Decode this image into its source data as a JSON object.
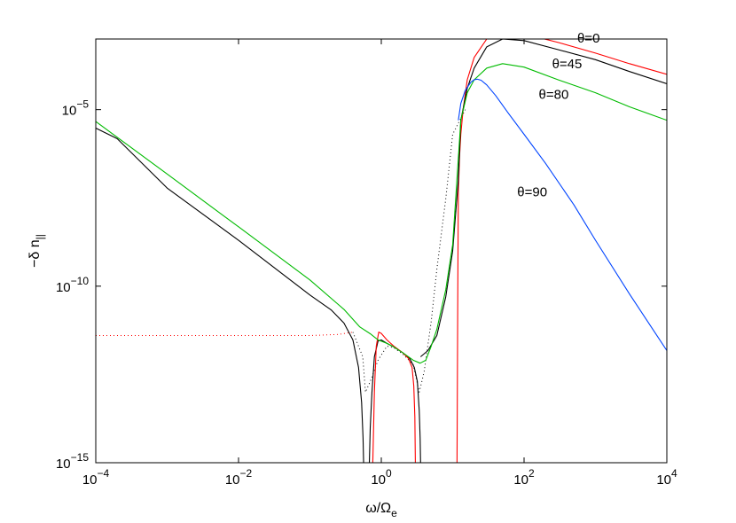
{
  "chart_data": {
    "type": "line",
    "xscale": "log",
    "yscale": "log",
    "xlim": [
      0.0001,
      10000
    ],
    "ylim": [
      1e-15,
      0.001
    ],
    "x_ticks": [
      {
        "value": 0.0001,
        "base": "10",
        "exp": "−4"
      },
      {
        "value": 0.01,
        "base": "10",
        "exp": "−2"
      },
      {
        "value": 1,
        "base": "10",
        "exp": "0"
      },
      {
        "value": 100,
        "base": "10",
        "exp": "2"
      },
      {
        "value": 10000,
        "base": "10",
        "exp": "4"
      }
    ],
    "y_ticks": [
      {
        "value": 1e-15,
        "base": "10",
        "exp": "−15"
      },
      {
        "value": 1e-10,
        "base": "10",
        "exp": "−10"
      },
      {
        "value": 1e-05,
        "base": "10",
        "exp": "−5"
      }
    ],
    "xlabel": {
      "main": "ω/Ω",
      "sub": "e"
    },
    "ylabel": {
      "main": "−δ n",
      "sub": "||"
    },
    "grid": false,
    "annotations": [
      {
        "text": "θ=0",
        "x": 800,
        "y": 0.0008,
        "color": "#000000"
      },
      {
        "text": "θ=45",
        "x": 400,
        "y": 0.00015,
        "color": "#000000"
      },
      {
        "text": "θ=80",
        "x": 260,
        "y": 2e-05,
        "color": "#000000"
      },
      {
        "text": "θ=90",
        "x": 130,
        "y": 3.5e-08,
        "color": "#000000"
      }
    ],
    "series": [
      {
        "color": "#ff0000",
        "style": "dotted",
        "x": [
          0.0001,
          0.01,
          0.1,
          0.25,
          0.4
        ],
        "y": [
          4e-12,
          4e-12,
          4e-12,
          4.3e-12,
          5e-12
        ]
      },
      {
        "color": "#000000",
        "style": "dotted",
        "x": [
          0.4,
          0.55,
          0.6,
          0.7,
          0.9,
          1.2,
          1.5,
          2,
          2.8,
          3.4,
          3.7,
          4,
          5,
          6,
          8,
          10,
          15
        ],
        "y": [
          5e-12,
          1e-12,
          1e-13,
          2e-13,
          8e-13,
          2e-12,
          1.8e-12,
          1.2e-12,
          6e-13,
          1e-13,
          2e-13,
          4e-13,
          1e-11,
          3e-10,
          3e-08,
          2e-06,
          1e-05
        ]
      },
      {
        "color": "#000000",
        "style": "solid",
        "x": [
          0.0001,
          0.0002,
          0.001,
          0.01,
          0.1,
          0.2,
          0.3,
          0.4,
          0.48,
          0.53,
          0.555,
          0.565
        ],
        "y": [
          3e-06,
          1.5e-06,
          6e-08,
          2e-09,
          5.6e-11,
          2.1e-11,
          9e-12,
          3e-12,
          5e-13,
          5e-14,
          5e-15,
          1e-15
        ]
      },
      {
        "color": "#000000",
        "style": "solid",
        "x": [
          0.68,
          0.7,
          0.74,
          0.8,
          0.9,
          1.0,
          1.2,
          1.5,
          2,
          2.5,
          2.9,
          3.2,
          3.4,
          3.5,
          3.55
        ],
        "y": [
          1e-15,
          1e-14,
          1e-13,
          1e-12,
          2.8e-12,
          3e-12,
          2.4e-12,
          1.9e-12,
          1.3e-12,
          9e-13,
          5e-13,
          2e-13,
          3e-14,
          5e-15,
          1e-15
        ]
      },
      {
        "color": "#ff0000",
        "style": "solid",
        "x": [
          0.76,
          0.78,
          0.8,
          0.85,
          0.92,
          1.0,
          1.2,
          1.5,
          2,
          2.4,
          2.7,
          2.85,
          2.95,
          3.0
        ],
        "y": [
          1e-15,
          1e-14,
          1e-13,
          2e-12,
          5e-12,
          4.6e-12,
          3e-12,
          2e-12,
          1.3e-12,
          9e-13,
          5e-13,
          1.5e-13,
          2e-14,
          1e-15
        ]
      },
      {
        "color": "#ff0000",
        "style": "solid",
        "x": [
          11.5,
          11.8,
          12,
          12.5,
          13,
          14,
          16,
          20,
          30,
          50,
          100,
          300,
          1000,
          3000,
          10000
        ],
        "y": [
          1e-15,
          1e-10,
          5e-08,
          5e-07,
          2e-06,
          1e-05,
          7e-05,
          0.0003,
          0.001,
          0.0017,
          0.0014,
          0.0008,
          0.0004,
          0.0002,
          0.0001
        ]
      },
      {
        "color": "#000000",
        "style": "solid",
        "x": [
          3.55,
          4.5,
          6,
          8,
          10,
          12,
          13,
          16,
          20,
          30,
          50,
          100,
          300,
          1000,
          3000,
          10000
        ],
        "y": [
          1e-12,
          1.5e-12,
          4e-12,
          5e-11,
          1e-09,
          1e-07,
          5e-06,
          4e-05,
          0.00015,
          0.0006,
          0.001,
          0.0009,
          0.0005,
          0.00026,
          0.00012,
          5.4e-05
        ]
      },
      {
        "color": "#00bb00",
        "style": "solid",
        "x": [
          0.0001,
          0.001,
          0.01,
          0.1,
          0.3,
          0.5,
          0.7,
          0.9,
          1.2,
          1.5,
          2,
          2.8,
          3.5,
          4.2,
          5,
          6,
          8,
          10,
          13,
          16,
          20,
          30,
          50,
          100,
          300,
          1000,
          3000,
          10000
        ],
        "y": [
          4.6e-06,
          1.5e-07,
          4.8e-09,
          1.5e-10,
          2.2e-11,
          7e-12,
          4.5e-12,
          3e-12,
          2.4e-12,
          1.9e-12,
          1.3e-12,
          8e-13,
          6.6e-13,
          8e-13,
          2e-12,
          6e-12,
          8e-11,
          1.5e-09,
          5e-06,
          3e-05,
          7e-05,
          0.00015,
          0.0002,
          0.00016,
          7e-05,
          3e-05,
          1.2e-05,
          5e-06
        ]
      },
      {
        "color": "#0044ff",
        "style": "solid",
        "x": [
          12,
          13,
          15,
          18,
          20,
          22,
          25,
          30,
          40,
          60,
          100,
          200,
          500,
          1000,
          3000,
          10000
        ],
        "y": [
          5e-06,
          1.5e-05,
          3.5e-05,
          6e-05,
          7e-05,
          7.3e-05,
          6.8e-05,
          5e-05,
          2.5e-05,
          8e-06,
          2e-06,
          3e-07,
          2e-08,
          2e-09,
          6e-11,
          1.5e-12
        ]
      }
    ]
  }
}
